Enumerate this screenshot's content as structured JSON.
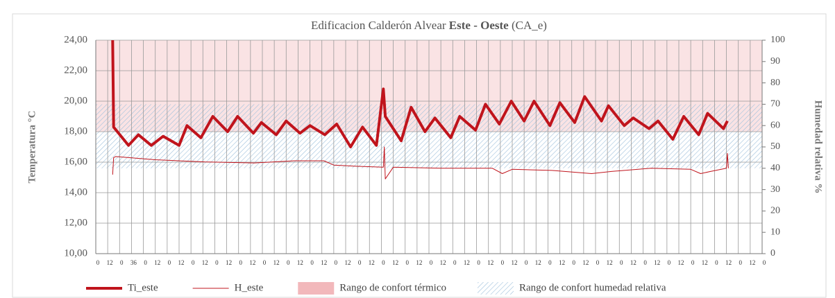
{
  "chart_data": {
    "type": "line",
    "title_parts": [
      "Edificacion Calderón Alvear",
      "Este - Oeste",
      "(CA_e)"
    ],
    "ylabel": "Temperatura °C",
    "y2label": "Humedad relativa %",
    "xlim": [
      0,
      672
    ],
    "xticks": [
      0,
      12,
      {
        "value": 24,
        "label": "0"
      },
      36,
      {
        "value": 48,
        "label": "0"
      },
      {
        "value": 60,
        "label": "12"
      },
      {
        "value": 72,
        "label": "0"
      },
      {
        "value": 84,
        "label": "12"
      },
      {
        "value": 96,
        "label": "0"
      },
      {
        "value": 108,
        "label": "12"
      },
      {
        "value": 120,
        "label": "0"
      },
      {
        "value": 132,
        "label": "12"
      },
      {
        "value": 144,
        "label": "0"
      },
      {
        "value": 156,
        "label": "12"
      },
      {
        "value": 168,
        "label": "0"
      },
      {
        "value": 180,
        "label": "12"
      },
      {
        "value": 192,
        "label": "0"
      },
      {
        "value": 204,
        "label": "12"
      },
      {
        "value": 216,
        "label": "0"
      },
      {
        "value": 228,
        "label": "12"
      },
      {
        "value": 240,
        "label": "0"
      },
      {
        "value": 252,
        "label": "12"
      },
      {
        "value": 264,
        "label": "0"
      },
      {
        "value": 276,
        "label": "12"
      },
      {
        "value": 288,
        "label": "0"
      },
      {
        "value": 300,
        "label": "12"
      },
      {
        "value": 312,
        "label": "0"
      },
      {
        "value": 324,
        "label": "12"
      },
      {
        "value": 336,
        "label": "0"
      },
      {
        "value": 348,
        "label": "12"
      },
      {
        "value": 360,
        "label": "0"
      },
      {
        "value": 372,
        "label": "12"
      },
      {
        "value": 384,
        "label": "0"
      },
      {
        "value": 396,
        "label": "12"
      },
      {
        "value": 408,
        "label": "0"
      },
      {
        "value": 420,
        "label": "12"
      },
      {
        "value": 432,
        "label": "0"
      },
      {
        "value": 444,
        "label": "12"
      },
      {
        "value": 456,
        "label": "0"
      },
      {
        "value": 468,
        "label": "12"
      },
      {
        "value": 480,
        "label": "0"
      },
      {
        "value": 492,
        "label": "12"
      },
      {
        "value": 504,
        "label": "0"
      },
      {
        "value": 516,
        "label": "12"
      },
      {
        "value": 528,
        "label": "0"
      },
      {
        "value": 540,
        "label": "12"
      },
      {
        "value": 552,
        "label": "0"
      },
      {
        "value": 564,
        "label": "12"
      },
      {
        "value": 576,
        "label": "0"
      },
      {
        "value": 588,
        "label": "12"
      },
      {
        "value": 600,
        "label": "0"
      },
      {
        "value": 612,
        "label": "12"
      },
      {
        "value": 624,
        "label": "0"
      },
      {
        "value": 636,
        "label": "12"
      },
      {
        "value": 648,
        "label": "0"
      },
      {
        "value": 660,
        "label": "12"
      },
      {
        "value": 672,
        "label": "0"
      }
    ],
    "ylim": [
      10,
      24
    ],
    "yticks": [
      {
        "value": 10,
        "label": "10,00"
      },
      {
        "value": 12,
        "label": "12,00"
      },
      {
        "value": 14,
        "label": "14,00"
      },
      {
        "value": 16,
        "label": "16,00"
      },
      {
        "value": 18,
        "label": "18,00"
      },
      {
        "value": 20,
        "label": "20,00"
      },
      {
        "value": 22,
        "label": "22,00"
      },
      {
        "value": 24,
        "label": "24,00"
      }
    ],
    "y2lim": [
      0,
      100
    ],
    "y2ticks": [
      0,
      10,
      20,
      30,
      40,
      50,
      60,
      70,
      80,
      90,
      100
    ],
    "grid": true,
    "bands": [
      {
        "name": "Rango de confort térmico",
        "color": "#f2b8bb",
        "range": [
          18,
          24
        ],
        "axis": "y",
        "style": "fill"
      },
      {
        "name": "Rango de confort humedad relativa",
        "color": "#9fc0dc",
        "range": [
          40,
          70
        ],
        "axis": "y2",
        "style": "hatch"
      }
    ],
    "series": [
      {
        "name": "Ti_este",
        "color": "#c0141c",
        "width": 4,
        "x": [
          17,
          18,
          33,
          43,
          56,
          68,
          84,
          92,
          106,
          118,
          133,
          143,
          159,
          167,
          182,
          192,
          206,
          216,
          231,
          243,
          257,
          269,
          283,
          290,
          292,
          308,
          318,
          332,
          342,
          358,
          367,
          383,
          393,
          407,
          419,
          432,
          442,
          458,
          468,
          483,
          493,
          510,
          517,
          533,
          542,
          558,
          567,
          582,
          593,
          608,
          617,
          633,
          637
        ],
        "values": [
          24,
          18.3,
          17.1,
          17.8,
          17.1,
          17.7,
          17.1,
          18.4,
          17.6,
          19.0,
          18.0,
          19.0,
          17.9,
          18.6,
          17.8,
          18.7,
          17.9,
          18.4,
          17.8,
          18.5,
          17.0,
          18.3,
          17.1,
          20.8,
          19.0,
          17.4,
          19.6,
          18.0,
          18.9,
          17.6,
          19.0,
          18.1,
          19.8,
          18.5,
          20.0,
          18.7,
          20.0,
          18.4,
          19.9,
          18.6,
          20.3,
          18.7,
          19.7,
          18.4,
          18.9,
          18.2,
          18.7,
          17.5,
          19.0,
          17.8,
          19.2,
          18.2,
          18.7
        ]
      },
      {
        "name": "H_este",
        "color": "#c0141c",
        "width": 1,
        "axis": "y2",
        "x": [
          17,
          18,
          20,
          60,
          110,
          160,
          200,
          230,
          240,
          260,
          290,
          291,
          292,
          300,
          350,
          400,
          410,
          420,
          460,
          500,
          520,
          560,
          600,
          610,
          620,
          636,
          637,
          638
        ],
        "values": [
          37,
          45,
          45.5,
          44,
          43,
          42.5,
          43.5,
          43.5,
          41.5,
          41,
          40.5,
          50,
          35,
          40.5,
          40,
          40,
          37.5,
          39.5,
          39,
          37.5,
          38.5,
          40,
          39.5,
          37.5,
          38.5,
          40,
          47,
          40
        ]
      }
    ]
  }
}
